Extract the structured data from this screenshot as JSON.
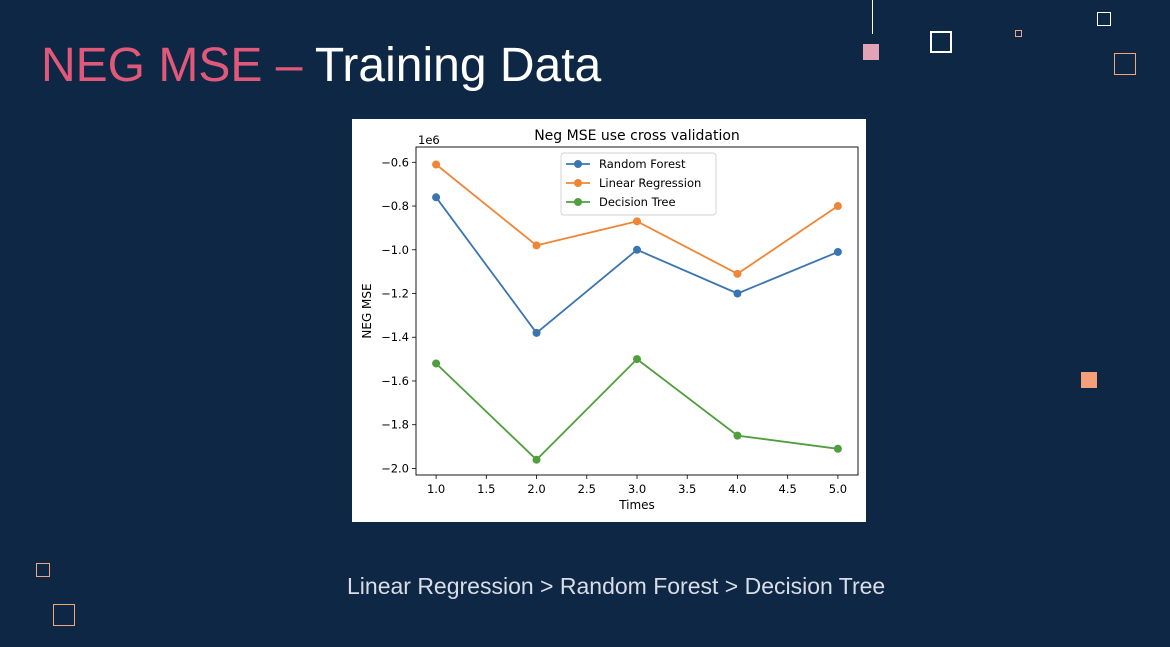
{
  "slide": {
    "title_accent": "NEG MSE –",
    "title_main": " Training Data",
    "conclusion": "Linear Regression > Random Forest > Decision Tree"
  },
  "colors": {
    "background": "#0e2744",
    "title_accent": "#e0597a",
    "random_forest": "#3b75af",
    "linear_regression": "#ef8636",
    "decision_tree": "#519e3e"
  },
  "chart_data": {
    "type": "line",
    "title": "Neg MSE use cross validation",
    "xlabel": "Times",
    "ylabel": "NEG MSE",
    "y_offset_label": "1e6",
    "x": [
      1,
      2,
      3,
      4,
      5
    ],
    "xlim": [
      0.8,
      5.2
    ],
    "ylim": [
      -2.03,
      -0.53
    ],
    "x_ticks": [
      "1.0",
      "1.5",
      "2.0",
      "2.5",
      "3.0",
      "3.5",
      "4.0",
      "4.5",
      "5.0"
    ],
    "y_ticks": [
      "−0.6",
      "−0.8",
      "−1.0",
      "−1.2",
      "−1.4",
      "−1.6",
      "−1.8",
      "−2.0"
    ],
    "grid": false,
    "legend_position": "upper center",
    "series": [
      {
        "name": "Random Forest",
        "color": "#3b75af",
        "values": [
          -0.76,
          -1.38,
          -1.0,
          -1.2,
          -1.01
        ]
      },
      {
        "name": "Linear Regression",
        "color": "#ef8636",
        "values": [
          -0.61,
          -0.98,
          -0.87,
          -1.11,
          -0.8
        ]
      },
      {
        "name": "Decision Tree",
        "color": "#519e3e",
        "values": [
          -1.52,
          -1.96,
          -1.5,
          -1.85,
          -1.91
        ]
      }
    ]
  }
}
